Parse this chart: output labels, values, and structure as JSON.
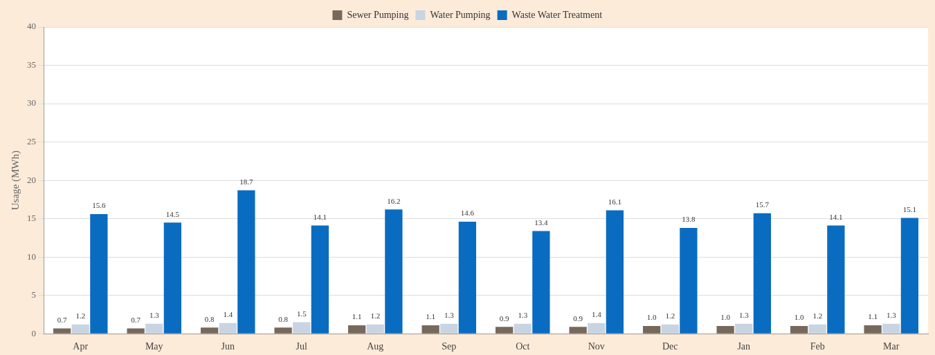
{
  "chart_data": {
    "type": "bar",
    "ylabel": "Usage (MWh)",
    "categories": [
      "Apr",
      "May",
      "Jun",
      "Jul",
      "Aug",
      "Sep",
      "Oct",
      "Nov",
      "Dec",
      "Jan",
      "Feb",
      "Mar"
    ],
    "series": [
      {
        "name": "Sewer Pumping",
        "color": "#76695c",
        "values": [
          0.7,
          0.7,
          0.8,
          0.8,
          1.1,
          1.1,
          0.9,
          0.9,
          1.0,
          1.0,
          1.0,
          1.1
        ],
        "value_labels": [
          "0.7",
          "0.7",
          "0.8",
          "0.8",
          "1.1",
          "1.1",
          "0.9",
          "0.9",
          "1.0",
          "1.0",
          "1.0",
          "1.1"
        ]
      },
      {
        "name": "Water Pumping",
        "color": "#c8d4e2",
        "values": [
          1.2,
          1.3,
          1.4,
          1.5,
          1.2,
          1.3,
          1.3,
          1.4,
          1.2,
          1.3,
          1.2,
          1.3
        ],
        "value_labels": [
          "1.2",
          "1.3",
          "1.4",
          "1.5",
          "1.2",
          "1.3",
          "1.3",
          "1.4",
          "1.2",
          "1.3",
          "1.2",
          "1.3"
        ]
      },
      {
        "name": "Waste Water Treatment",
        "color": "#0a6cc0",
        "values": [
          15.6,
          14.5,
          18.7,
          14.1,
          16.2,
          14.6,
          13.4,
          16.1,
          13.8,
          15.7,
          14.1,
          15.1
        ],
        "value_labels": [
          "15.6",
          "14.5",
          "18.7",
          "14.1",
          "16.2",
          "14.6",
          "13.4",
          "16.1",
          "13.8",
          "15.7",
          "14.1",
          "15.1"
        ]
      }
    ],
    "ylim": [
      0,
      40
    ],
    "yticks": [
      0,
      5,
      10,
      15,
      20,
      25,
      30,
      35,
      40
    ],
    "grid": "y",
    "legend": "top"
  }
}
